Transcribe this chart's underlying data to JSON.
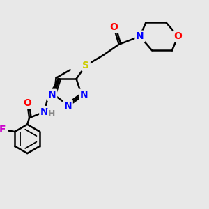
{
  "bg_color": "#e8e8e8",
  "atom_colors": {
    "N": "#0000ff",
    "O": "#ff0000",
    "S": "#cccc00",
    "F": "#cc00cc",
    "C": "#000000",
    "H": "#888888"
  },
  "bond_color": "#000000",
  "bond_width": 1.8,
  "font_size_atoms": 10,
  "font_size_small": 8,
  "figsize": [
    3.0,
    3.0
  ],
  "dpi": 100,
  "xlim": [
    0,
    10
  ],
  "ylim": [
    0,
    10
  ]
}
